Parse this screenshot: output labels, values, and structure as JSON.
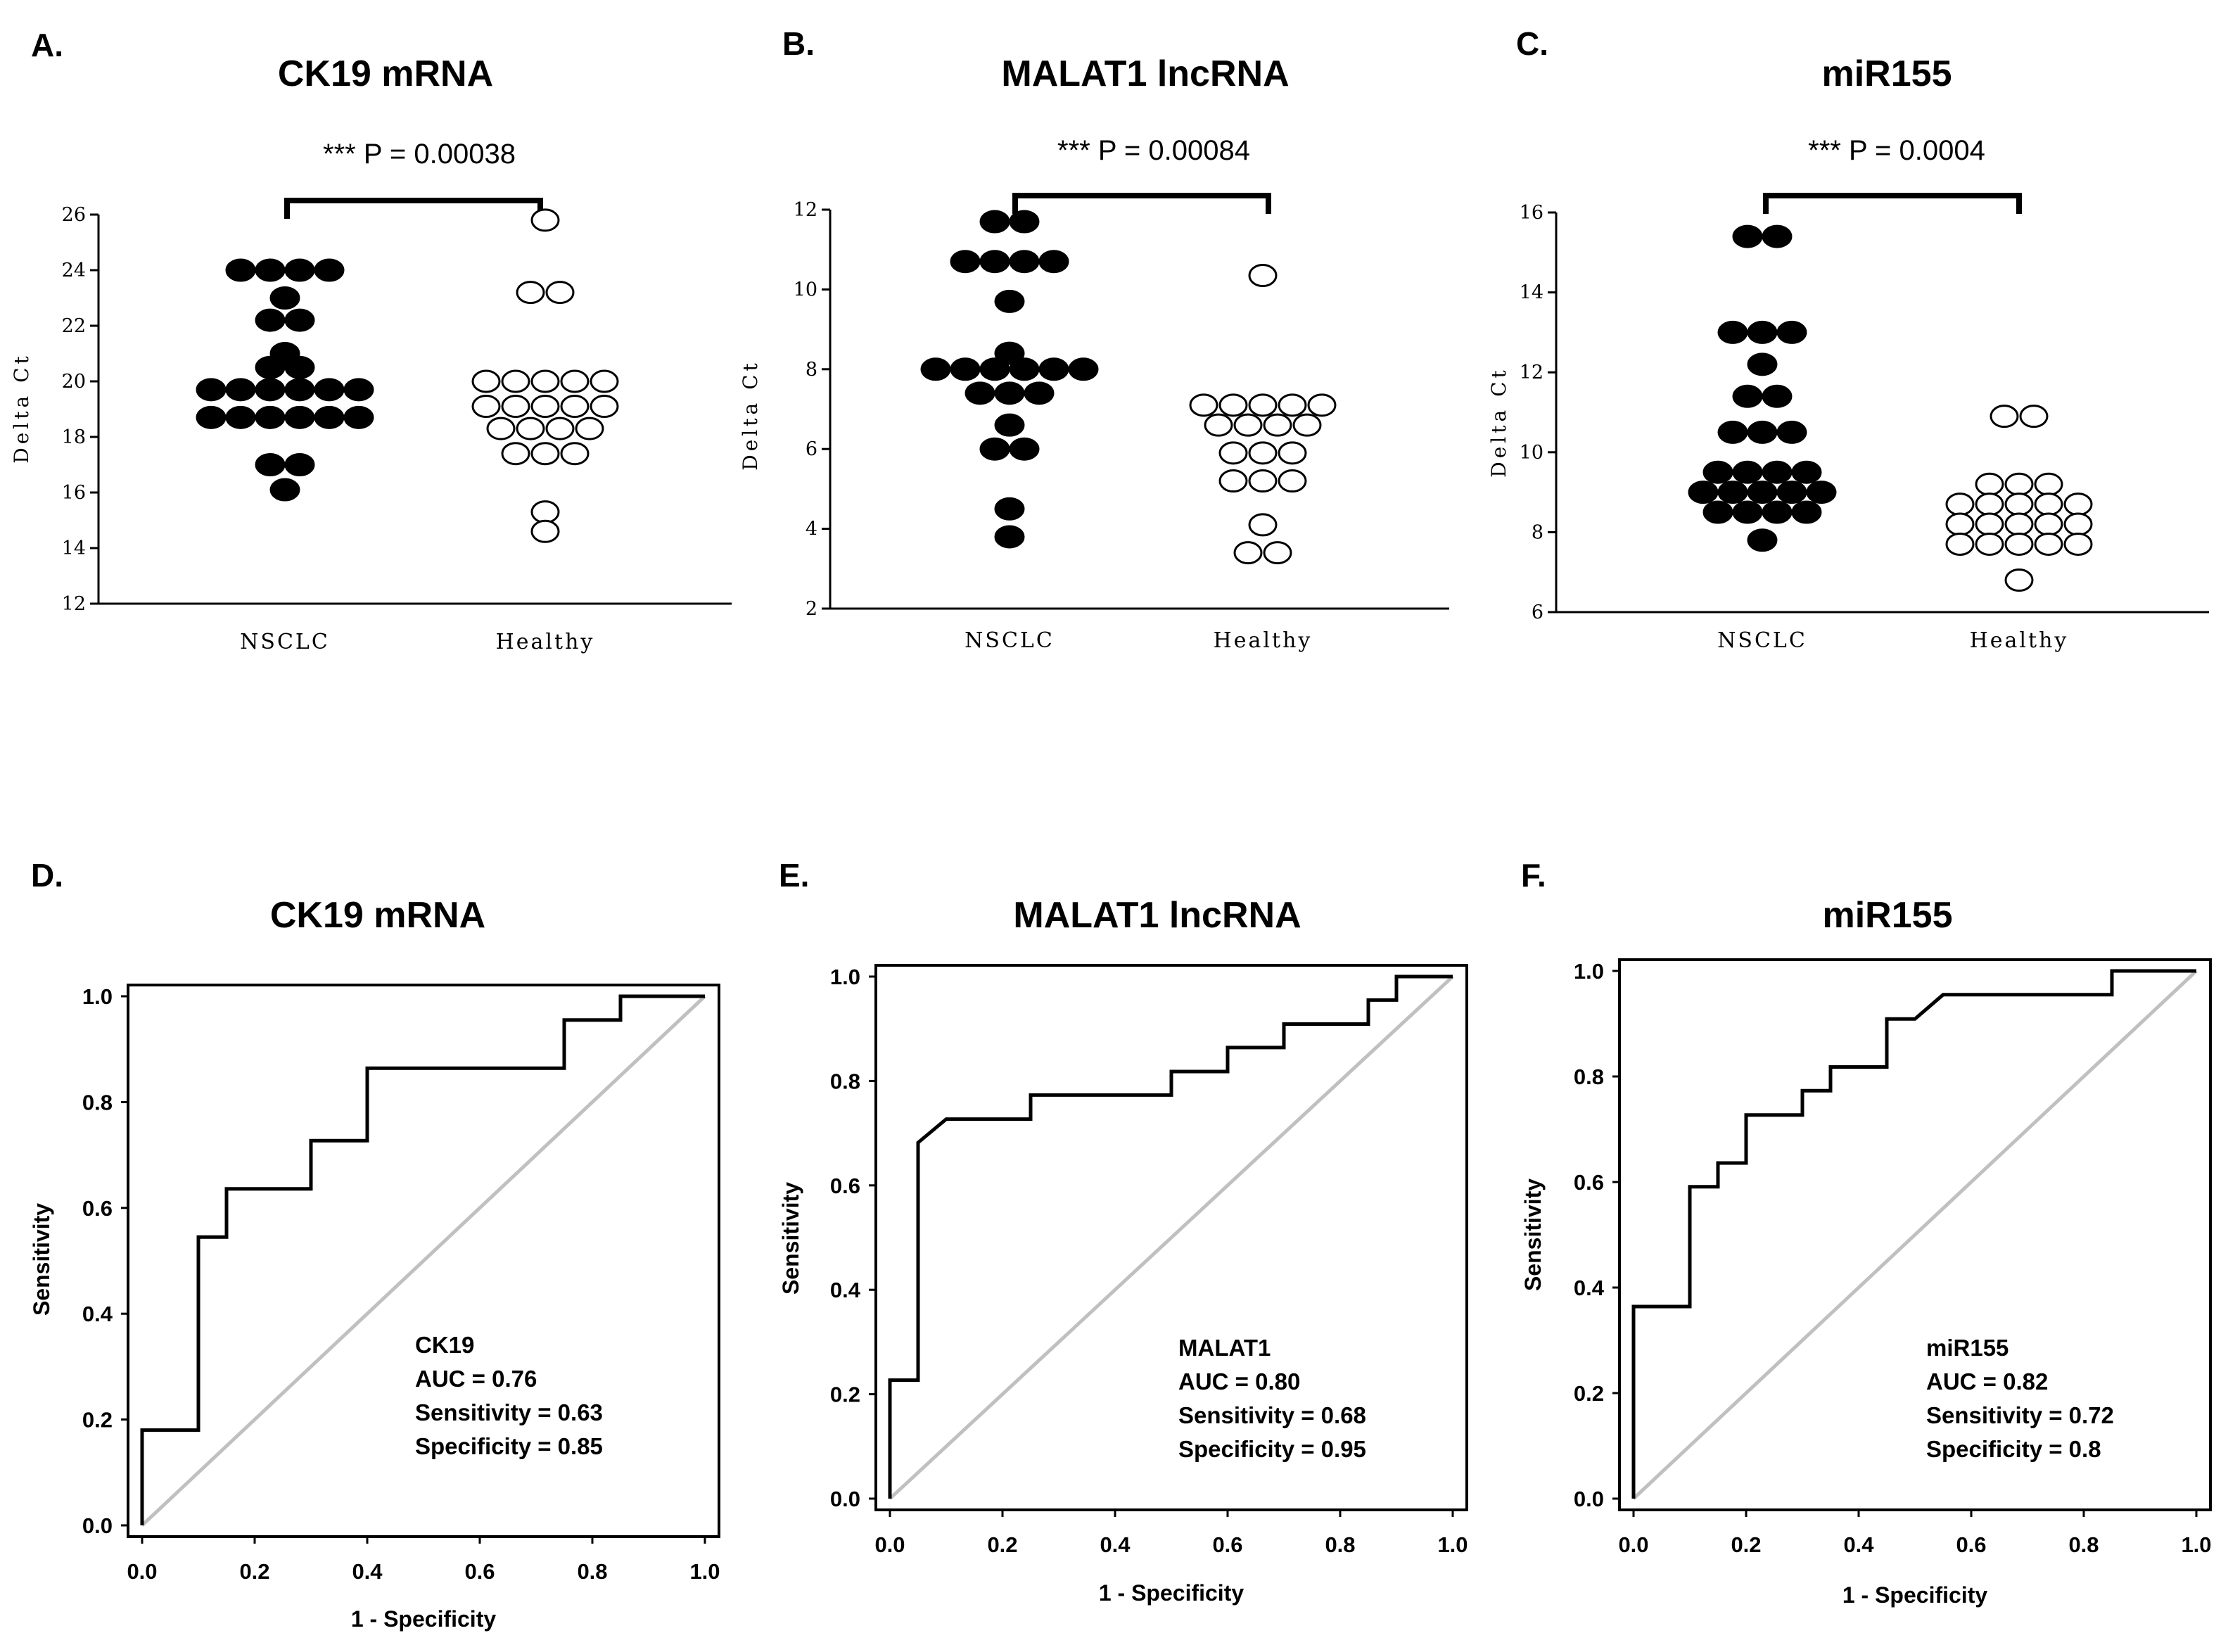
{
  "chart_data": [
    {
      "panel": "A.",
      "type": "scatter",
      "title": "CK19 mRNA",
      "pvalue_label": "*** P = 0.00038",
      "ylabel": "Delta Ct",
      "ylim": [
        12,
        26
      ],
      "yticks": [
        12,
        14,
        16,
        18,
        20,
        22,
        24,
        26
      ],
      "categories": [
        "NSCLC",
        "Healthy"
      ],
      "series": [
        {
          "name": "NSCLC",
          "filled": true,
          "values": [
            24,
            24,
            24,
            24,
            23,
            22.2,
            22.2,
            21,
            20.5,
            20.5,
            19.7,
            19.7,
            19.7,
            19.7,
            19.7,
            19.7,
            18.7,
            18.7,
            18.7,
            18.7,
            18.7,
            18.7,
            17,
            17,
            16.1
          ]
        },
        {
          "name": "Healthy",
          "filled": false,
          "values": [
            25.8,
            23.2,
            23.2,
            20,
            20,
            20,
            20,
            20,
            19.1,
            19.1,
            19.1,
            19.1,
            19.1,
            18.3,
            18.3,
            18.3,
            18.3,
            17.4,
            17.4,
            17.4,
            15.3,
            14.6
          ]
        }
      ]
    },
    {
      "panel": "B.",
      "type": "scatter",
      "title": "MALAT1 lncRNA",
      "pvalue_label": "*** P = 0.00084",
      "ylabel": "Delta Ct",
      "ylim": [
        2,
        12
      ],
      "yticks": [
        2,
        4,
        6,
        8,
        10,
        12
      ],
      "categories": [
        "NSCLC",
        "Healthy"
      ],
      "series": [
        {
          "name": "NSCLC",
          "filled": true,
          "values": [
            11.7,
            11.7,
            10.7,
            10.7,
            10.7,
            10.7,
            9.7,
            8.4,
            8,
            8,
            8,
            8,
            8,
            8,
            7.4,
            7.4,
            7.4,
            6.6,
            6,
            6,
            4.5,
            3.8
          ]
        },
        {
          "name": "Healthy",
          "filled": false,
          "values": [
            10.35,
            7.1,
            7.1,
            7.1,
            7.1,
            7.1,
            6.6,
            6.6,
            6.6,
            6.6,
            5.9,
            5.9,
            5.9,
            5.2,
            5.2,
            5.2,
            4.1,
            3.4,
            3.4
          ]
        }
      ]
    },
    {
      "panel": "C.",
      "type": "scatter",
      "title": "miR155",
      "pvalue_label": "*** P = 0.0004",
      "ylabel": "Delta Ct",
      "ylim": [
        6,
        16
      ],
      "yticks": [
        6,
        8,
        10,
        12,
        14,
        16
      ],
      "categories": [
        "NSCLC",
        "Healthy"
      ],
      "series": [
        {
          "name": "NSCLC",
          "filled": true,
          "values": [
            15.4,
            15.4,
            13,
            13,
            13,
            12.2,
            11.4,
            11.4,
            10.5,
            10.5,
            10.5,
            9.5,
            9.5,
            9.5,
            9.5,
            9,
            9,
            9,
            9,
            9,
            8.5,
            8.5,
            8.5,
            8.5,
            7.8
          ]
        },
        {
          "name": "Healthy",
          "filled": false,
          "values": [
            10.9,
            10.9,
            9.2,
            9.2,
            9.2,
            8.7,
            8.7,
            8.7,
            8.7,
            8.7,
            8.2,
            8.2,
            8.2,
            8.2,
            8.2,
            7.7,
            7.7,
            7.7,
            7.7,
            7.7,
            6.8
          ]
        }
      ]
    },
    {
      "panel": "D.",
      "type": "line",
      "title": "CK19 mRNA",
      "xlabel": "1 - Specificity",
      "ylabel": "Sensitivity",
      "xlim": [
        0,
        1
      ],
      "ylim": [
        0,
        1
      ],
      "xticks": [
        "0.0",
        "0.2",
        "0.4",
        "0.6",
        "0.8",
        "1.0"
      ],
      "yticks": [
        "0.0",
        "0.2",
        "0.4",
        "0.6",
        "0.8",
        "1.0"
      ],
      "x": [
        0,
        0,
        0.1,
        0.1,
        0.15,
        0.15,
        0.3,
        0.3,
        0.4,
        0.4,
        0.75,
        0.75,
        0.85,
        0.85,
        1
      ],
      "y": [
        0,
        0.18,
        0.18,
        0.545,
        0.545,
        0.636,
        0.636,
        0.727,
        0.727,
        0.864,
        0.864,
        0.955,
        0.955,
        1,
        1
      ],
      "stats": [
        "CK19",
        "AUC = 0.76",
        "Sensitivity = 0.63",
        "Specificity = 0.85"
      ]
    },
    {
      "panel": "E.",
      "type": "line",
      "title": "MALAT1 lncRNA",
      "xlabel": "1 - Specificity",
      "ylabel": "Sensitivity",
      "xlim": [
        0,
        1
      ],
      "ylim": [
        0,
        1
      ],
      "xticks": [
        "0.0",
        "0.2",
        "0.4",
        "0.6",
        "0.8",
        "1.0"
      ],
      "yticks": [
        "0.0",
        "0.2",
        "0.4",
        "0.6",
        "0.8",
        "1.0"
      ],
      "x": [
        0,
        0,
        0.05,
        0.05,
        0.1,
        0.25,
        0.25,
        0.5,
        0.5,
        0.6,
        0.6,
        0.7,
        0.7,
        0.85,
        0.85,
        0.9,
        0.9,
        1
      ],
      "y": [
        0,
        0.227,
        0.227,
        0.682,
        0.727,
        0.727,
        0.773,
        0.773,
        0.818,
        0.818,
        0.864,
        0.864,
        0.909,
        0.909,
        0.955,
        0.955,
        1,
        1
      ],
      "stats": [
        "MALAT1",
        "AUC = 0.80",
        "Sensitivity = 0.68",
        "Specificity = 0.95"
      ]
    },
    {
      "panel": "F.",
      "type": "line",
      "title": "miR155",
      "xlabel": "1 - Specificity",
      "ylabel": "Sensitivity",
      "xlim": [
        0,
        1
      ],
      "ylim": [
        0,
        1
      ],
      "xticks": [
        "0.0",
        "0.2",
        "0.4",
        "0.6",
        "0.8",
        "1.0"
      ],
      "yticks": [
        "0.0",
        "0.2",
        "0.4",
        "0.6",
        "0.8",
        "1.0"
      ],
      "x": [
        0,
        0,
        0.1,
        0.1,
        0.15,
        0.15,
        0.2,
        0.2,
        0.3,
        0.3,
        0.35,
        0.35,
        0.45,
        0.45,
        0.5,
        0.55,
        0.85,
        0.85,
        1
      ],
      "y": [
        0,
        0.364,
        0.364,
        0.591,
        0.591,
        0.636,
        0.636,
        0.727,
        0.727,
        0.773,
        0.773,
        0.818,
        0.818,
        0.909,
        0.909,
        0.955,
        0.955,
        1,
        1
      ],
      "stats": [
        "miR155",
        "AUC = 0.82",
        "Sensitivity = 0.72",
        "Specificity = 0.8"
      ]
    }
  ]
}
